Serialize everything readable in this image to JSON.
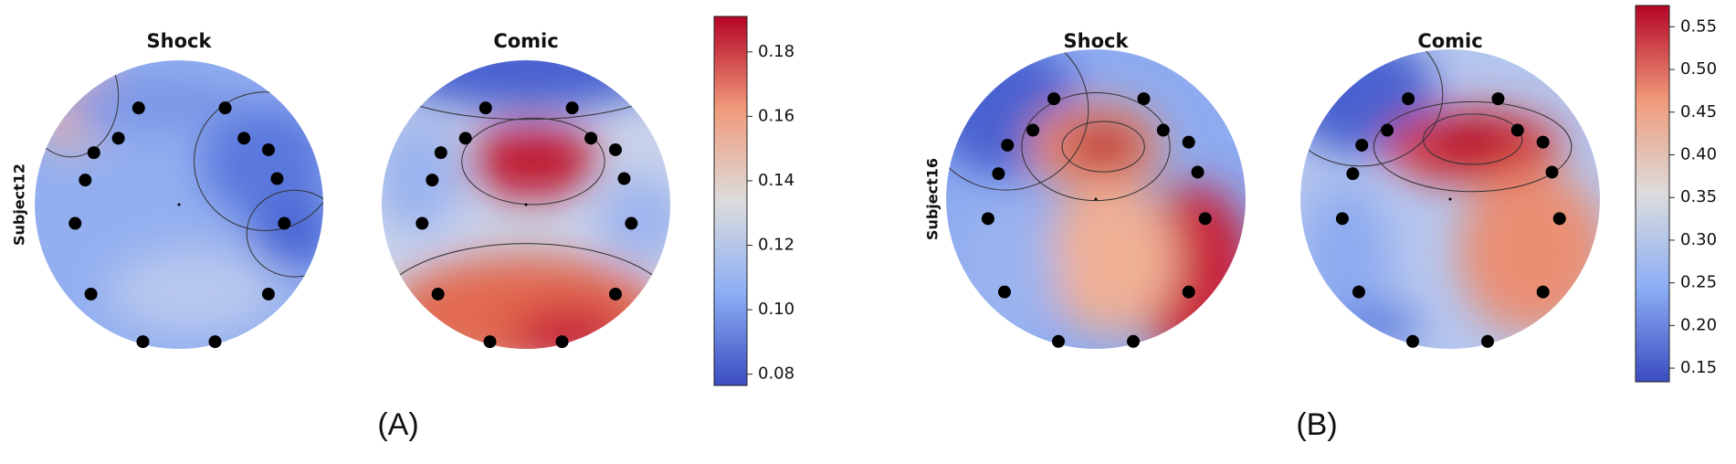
{
  "chart_data": [
    {
      "type": "topomap",
      "caption": "(A)",
      "ylabel": "Subject12",
      "maps": [
        {
          "title": "Shock"
        },
        {
          "title": "Comic"
        }
      ],
      "colorbar": {
        "lim": [
          0.0765,
          0.191
        ],
        "ticks": [
          0.08,
          {
            "value": 0.1,
            "label": "0.10"
          },
          0.12,
          0.14,
          0.16,
          0.18
        ]
      }
    },
    {
      "type": "topomap",
      "caption": "(B)",
      "ylabel": "Subject16",
      "maps": [
        {
          "title": "Shock"
        },
        {
          "title": "Comic"
        }
      ],
      "colorbar": {
        "lim": [
          0.134,
          0.575
        ],
        "ticks": [
          0.15,
          {
            "value": 0.2,
            "label": "0.20"
          },
          0.25,
          {
            "value": 0.3,
            "label": "0.30"
          },
          0.35,
          {
            "value": 0.4,
            "label": "0.40"
          },
          0.45,
          {
            "value": 0.5,
            "label": "0.50"
          },
          0.55
        ]
      }
    }
  ]
}
